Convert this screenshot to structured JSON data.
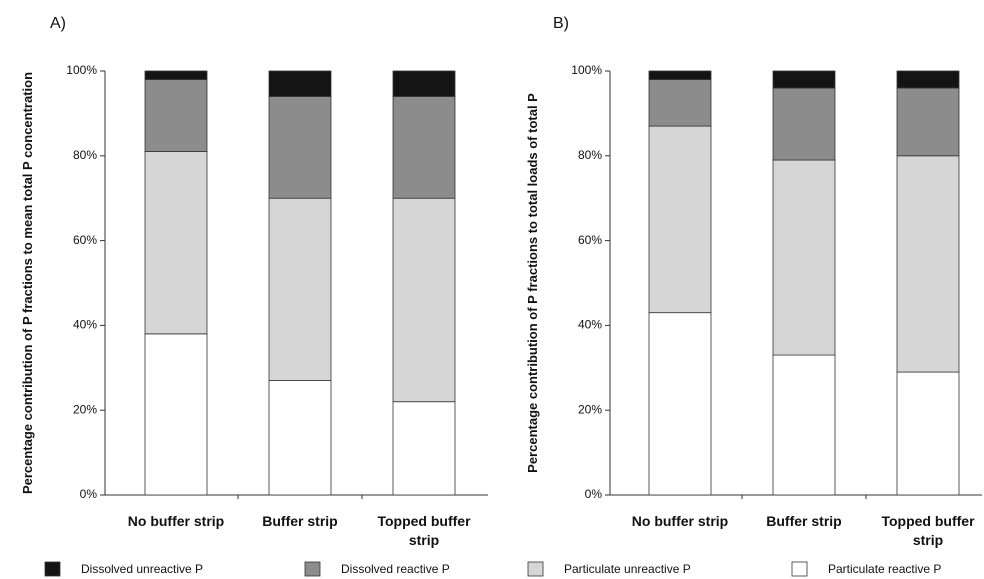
{
  "chart_data": [
    {
      "type": "stacked-bar",
      "panel_label": "A)",
      "ylabel": "Percentage contribution of P fractions to mean total P concentration",
      "categories": [
        "No buffer strip",
        "Buffer strip",
        "Topped buffer strip"
      ],
      "series": [
        {
          "name": "Dissolved unreactive P",
          "color": "#141414",
          "values": [
            2,
            6,
            6
          ]
        },
        {
          "name": "Dissolved reactive P",
          "color": "#8c8c8c",
          "values": [
            17,
            24,
            24
          ]
        },
        {
          "name": "Particulate unreactive P",
          "color": "#d6d6d6",
          "values": [
            43,
            43,
            48
          ]
        },
        {
          "name": "Particulate reactive P",
          "color": "#ffffff",
          "values": [
            38,
            27,
            22
          ]
        }
      ],
      "ylim": [
        0,
        100
      ],
      "yticks": [
        {
          "value": 0,
          "label": "0%"
        },
        {
          "value": 20,
          "label": "20%"
        },
        {
          "value": 40,
          "label": "40%"
        },
        {
          "value": 60,
          "label": "60%"
        },
        {
          "value": 80,
          "label": "80%"
        },
        {
          "value": 100,
          "label": "100%"
        }
      ]
    },
    {
      "type": "stacked-bar",
      "panel_label": "B)",
      "ylabel": "Percentage contribution of P fractions to total loads of total P",
      "categories": [
        "No buffer strip",
        "Buffer strip",
        "Topped buffer strip"
      ],
      "series": [
        {
          "color": "#141414",
          "values": [
            2,
            4,
            4
          ]
        },
        {
          "color": "#8c8c8c",
          "values": [
            11,
            17,
            16
          ]
        },
        {
          "color": "#d6d6d6",
          "values": [
            44,
            46,
            51
          ]
        },
        {
          "color": "#ffffff",
          "values": [
            43,
            33,
            29
          ]
        }
      ],
      "ylim": [
        0,
        100
      ],
      "yticks": [
        {
          "value": 0,
          "label": "0%"
        },
        {
          "value": 20,
          "label": "20%"
        },
        {
          "value": 40,
          "label": "40%"
        },
        {
          "value": 60,
          "label": "60%"
        },
        {
          "value": 80,
          "label": "80%"
        },
        {
          "value": 100,
          "label": "100%"
        }
      ]
    }
  ]
}
